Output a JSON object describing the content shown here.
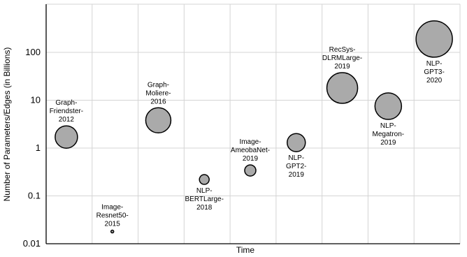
{
  "chart_data": {
    "type": "bubble",
    "title": "",
    "xlabel": "Time",
    "ylabel": "Number of Parameters/Edges (in Billions)",
    "yscale": "log",
    "ylim": [
      0.01,
      1000
    ],
    "yticks": [
      "0.01",
      "0.1",
      "1",
      "10",
      "100"
    ],
    "grid": true,
    "points": [
      {
        "label": [
          "Graph-",
          "Friendster-",
          "2012"
        ],
        "value": 1.7,
        "size": 16
      },
      {
        "label": [
          "Image-",
          "Resnet50-",
          "2015"
        ],
        "value": 0.018,
        "size": 2
      },
      {
        "label": [
          "Graph-",
          "Moliere-",
          "2016"
        ],
        "value": 3.8,
        "size": 18
      },
      {
        "label": [
          "NLP-",
          "BERTLarge-",
          "2018"
        ],
        "value": 0.22,
        "size": 7
      },
      {
        "label": [
          "Image-",
          "AmeobaNet-",
          "2019"
        ],
        "value": 0.34,
        "size": 8
      },
      {
        "label": [
          "NLP-",
          "GPT2-",
          "2019"
        ],
        "value": 1.3,
        "size": 13
      },
      {
        "label": [
          "RecSys-",
          "DLRMLarge-",
          "2019"
        ],
        "value": 18,
        "size": 22
      },
      {
        "label": [
          "NLP-",
          "Megatron-",
          "2019"
        ],
        "value": 7.5,
        "size": 19
      },
      {
        "label": [
          "NLP-",
          "GPT3-",
          "2020"
        ],
        "value": 190,
        "size": 26
      }
    ],
    "colors": {
      "bubble_fill": "#aaaaaa",
      "bubble_stroke": "#000000",
      "grid": "#d4d4d4"
    }
  }
}
